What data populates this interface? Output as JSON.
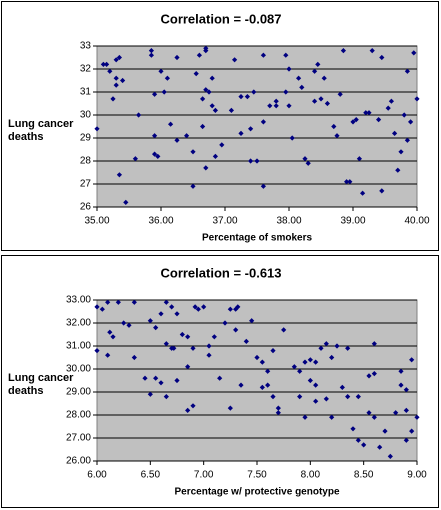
{
  "chart_data": [
    {
      "type": "scatter",
      "title": "Correlation = -0.087",
      "x_label": "Percentage of smokers",
      "y_label": "Lung cancer deaths",
      "color": "#000080",
      "grid": true,
      "xlim": [
        35,
        40
      ],
      "ylim": [
        26,
        33
      ],
      "xticks": [
        {
          "value": 35,
          "label": "35.00"
        },
        {
          "value": 36,
          "label": "36.00"
        },
        {
          "value": 37,
          "label": "37.00"
        },
        {
          "value": 38,
          "label": "38.00"
        },
        {
          "value": 39,
          "label": "39.00"
        },
        {
          "value": 40,
          "label": "40.00"
        }
      ],
      "yticks": [
        26,
        27,
        28,
        29,
        30,
        31,
        32,
        33
      ],
      "x": [
        35.0,
        35.1,
        35.15,
        35.2,
        35.25,
        35.3,
        35.3,
        35.3,
        35.35,
        35.4,
        35.35,
        35.45,
        35.6,
        35.65,
        35.85,
        35.85,
        35.9,
        35.9,
        35.9,
        35.95,
        36.0,
        36.05,
        36.1,
        36.15,
        36.25,
        36.25,
        36.4,
        36.5,
        36.5,
        36.55,
        36.6,
        36.65,
        36.65,
        36.7,
        36.7,
        36.7,
        36.7,
        36.75,
        36.8,
        36.8,
        36.85,
        36.85,
        36.95,
        37.1,
        37.15,
        37.25,
        37.25,
        37.35,
        37.4,
        37.4,
        37.45,
        37.5,
        37.6,
        37.6,
        37.6,
        37.7,
        37.8,
        37.8,
        37.95,
        37.95,
        38.0,
        38.0,
        38.05,
        38.15,
        38.2,
        38.25,
        38.3,
        38.4,
        38.45,
        38.5,
        38.55,
        38.6,
        38.7,
        38.75,
        38.8,
        38.85,
        38.9,
        38.95,
        39.05,
        39.1,
        39.15,
        39.2,
        39.3,
        39.4,
        39.45,
        39.55,
        39.6,
        39.65,
        39.75,
        39.8,
        39.85,
        39.9,
        39.95,
        40.0,
        39.45,
        38.4,
        39.0,
        39.25,
        39.7,
        39.85
      ],
      "values": [
        29.4,
        32.2,
        32.2,
        31.9,
        30.7,
        31.3,
        31.6,
        32.4,
        32.5,
        31.5,
        27.4,
        26.2,
        28.1,
        30.0,
        32.8,
        32.6,
        30.9,
        29.1,
        28.3,
        28.2,
        31.9,
        31.0,
        31.6,
        29.6,
        28.9,
        32.5,
        29.1,
        28.4,
        26.9,
        31.8,
        32.6,
        30.7,
        29.5,
        32.8,
        32.9,
        31.1,
        27.7,
        31.0,
        31.6,
        30.4,
        30.2,
        28.2,
        28.7,
        30.2,
        32.4,
        30.8,
        29.2,
        30.8,
        29.4,
        28.0,
        31.0,
        28.0,
        26.9,
        32.6,
        29.7,
        30.4,
        30.6,
        30.4,
        32.6,
        31.0,
        32.0,
        30.4,
        29.0,
        31.6,
        31.2,
        28.1,
        27.9,
        31.9,
        32.2,
        30.7,
        31.6,
        30.5,
        29.5,
        29.1,
        30.9,
        32.8,
        27.1,
        27.1,
        29.8,
        28.1,
        26.6,
        30.1,
        32.8,
        29.8,
        26.7,
        30.3,
        30.6,
        29.2,
        28.4,
        30.0,
        31.9,
        29.7,
        32.7,
        30.7,
        32.5,
        30.6,
        29.7,
        30.1,
        27.6,
        28.9
      ]
    },
    {
      "type": "scatter",
      "title": "Correlation = -0.613",
      "x_label": "Percentage w/ protective genotype",
      "y_label": "Lung cancer deaths",
      "color": "#000080",
      "grid": true,
      "xlim": [
        6,
        9
      ],
      "ylim": [
        26,
        33
      ],
      "xticks": [
        {
          "value": 6,
          "label": "6.00"
        },
        {
          "value": 6.5,
          "label": "6.50"
        },
        {
          "value": 7,
          "label": "7.00"
        },
        {
          "value": 7.5,
          "label": "7.50"
        },
        {
          "value": 8,
          "label": "8.00"
        },
        {
          "value": 8.5,
          "label": "8.50"
        },
        {
          "value": 9,
          "label": "9.00"
        }
      ],
      "yticks": [
        {
          "value": 26,
          "label": "26.00"
        },
        {
          "value": 27,
          "label": "27.00"
        },
        {
          "value": 28,
          "label": "28.00"
        },
        {
          "value": 29,
          "label": "29.00"
        },
        {
          "value": 30,
          "label": "30.00"
        },
        {
          "value": 31,
          "label": "31.00"
        },
        {
          "value": 32,
          "label": "32.00"
        },
        {
          "value": 33,
          "label": "33.00"
        }
      ],
      "x": [
        6.0,
        6.0,
        6.05,
        6.1,
        6.1,
        6.12,
        6.15,
        6.2,
        6.25,
        6.3,
        6.35,
        6.35,
        6.45,
        6.5,
        6.5,
        6.55,
        6.6,
        6.6,
        6.65,
        6.65,
        6.65,
        6.7,
        6.7,
        6.72,
        6.75,
        6.75,
        6.8,
        6.85,
        6.85,
        6.85,
        6.9,
        6.9,
        6.92,
        6.95,
        7.0,
        7.05,
        7.05,
        7.1,
        7.15,
        7.2,
        7.25,
        7.3,
        7.3,
        7.32,
        7.35,
        7.4,
        7.45,
        7.5,
        7.55,
        7.6,
        7.6,
        7.65,
        7.65,
        7.7,
        7.7,
        7.75,
        7.85,
        7.9,
        7.9,
        7.95,
        7.95,
        8.0,
        8.0,
        8.05,
        8.05,
        8.1,
        8.15,
        8.15,
        8.2,
        8.2,
        8.25,
        8.3,
        8.35,
        8.35,
        8.4,
        8.45,
        8.5,
        8.55,
        8.55,
        8.6,
        8.6,
        8.6,
        8.65,
        8.7,
        8.75,
        8.8,
        8.85,
        8.85,
        8.9,
        8.9,
        8.9,
        8.95,
        9.0,
        8.95,
        8.45,
        7.25,
        6.55,
        7.55,
        8.05
      ],
      "values": [
        30.8,
        32.7,
        32.6,
        32.9,
        30.6,
        31.6,
        31.4,
        32.9,
        32.0,
        31.9,
        32.9,
        30.5,
        29.6,
        28.9,
        32.1,
        31.8,
        29.4,
        32.4,
        32.9,
        31.1,
        28.8,
        32.7,
        30.9,
        30.9,
        29.5,
        32.4,
        31.5,
        31.4,
        30.1,
        28.2,
        28.4,
        30.9,
        32.7,
        32.6,
        32.7,
        31.0,
        30.6,
        31.4,
        29.6,
        32.0,
        28.3,
        32.6,
        31.7,
        32.7,
        29.3,
        31.2,
        32.1,
        30.5,
        30.3,
        29.3,
        29.9,
        28.8,
        30.8,
        28.3,
        28.1,
        31.7,
        30.1,
        29.9,
        28.8,
        30.3,
        27.9,
        29.5,
        30.4,
        30.3,
        28.6,
        30.9,
        31.1,
        28.7,
        30.5,
        27.9,
        31.0,
        29.2,
        30.9,
        28.8,
        27.4,
        26.9,
        26.7,
        29.7,
        28.1,
        29.8,
        31.1,
        27.9,
        26.6,
        27.3,
        26.2,
        28.1,
        29.3,
        29.9,
        29.1,
        28.2,
        26.9,
        30.4,
        27.9,
        27.3,
        28.8,
        32.6,
        29.6,
        29.2,
        29.3
      ]
    }
  ]
}
